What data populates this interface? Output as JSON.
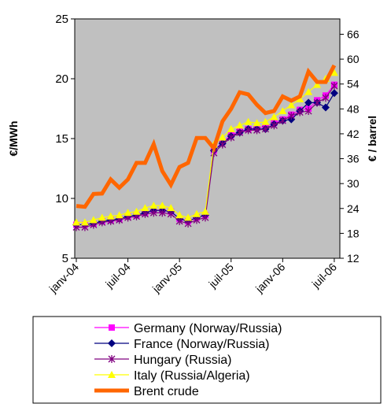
{
  "chart_data": {
    "type": "line",
    "categories": [
      "janv-04",
      null,
      null,
      null,
      null,
      null,
      "juil-04",
      null,
      null,
      null,
      null,
      null,
      "janv-05",
      null,
      null,
      null,
      null,
      null,
      "juil-05",
      null,
      null,
      null,
      null,
      null,
      "janv-06",
      null,
      null,
      null,
      null,
      null,
      "juil-06"
    ],
    "y_label": "€/MWh",
    "y2_label": "€ / barrel",
    "ylim": [
      5,
      25
    ],
    "yticks": [
      5,
      10,
      15,
      20,
      25
    ],
    "y2lim": [
      12,
      69.7
    ],
    "y2ticks": [
      12,
      18,
      24,
      30,
      36,
      42,
      48,
      54,
      60,
      66
    ],
    "series": [
      {
        "name": "Germany (Norway/Russia)",
        "color": "#ff00ff",
        "marker": "square",
        "values": [
          7.8,
          7.8,
          7.9,
          8.1,
          8.2,
          8.3,
          8.5,
          8.6,
          8.8,
          9.0,
          9.0,
          8.9,
          8.3,
          8.1,
          8.4,
          8.6,
          14.0,
          14.7,
          15.3,
          15.6,
          15.8,
          15.9,
          16.0,
          16.3,
          16.6,
          17.0,
          17.4,
          17.5,
          18.2,
          18.6,
          19.5
        ]
      },
      {
        "name": "France (Norway/Russia)",
        "color": "#000080",
        "marker": "diamond",
        "values": [
          7.8,
          7.8,
          7.9,
          8.1,
          8.2,
          8.3,
          8.5,
          8.6,
          8.8,
          9.0,
          9.0,
          8.9,
          8.3,
          8.1,
          8.4,
          8.6,
          14.0,
          14.6,
          15.2,
          15.5,
          15.8,
          15.8,
          15.8,
          16.2,
          16.5,
          16.6,
          17.3,
          18.0,
          18.0,
          17.6,
          18.8
        ]
      },
      {
        "name": "Hungary (Russia)",
        "color": "#800080",
        "marker": "asterisk",
        "values": [
          7.6,
          7.6,
          7.8,
          8.0,
          8.1,
          8.2,
          8.4,
          8.5,
          8.7,
          8.8,
          8.8,
          8.7,
          8.1,
          7.9,
          8.2,
          8.4,
          13.8,
          14.5,
          15.1,
          15.5,
          15.7,
          15.7,
          15.8,
          16.1,
          16.5,
          16.9,
          17.2,
          17.3,
          18.0,
          18.4,
          19.4
        ]
      },
      {
        "name": "Italy (Russia/Algeria)",
        "color": "#ffff00",
        "marker": "triangle",
        "values": [
          8.0,
          8.0,
          8.2,
          8.4,
          8.5,
          8.6,
          8.8,
          8.9,
          9.2,
          9.4,
          9.4,
          9.2,
          8.6,
          8.4,
          8.7,
          8.9,
          14.5,
          15.1,
          15.8,
          16.1,
          16.4,
          16.3,
          16.4,
          16.8,
          17.3,
          17.8,
          18.3,
          18.9,
          19.5,
          20.0,
          20.5
        ]
      },
      {
        "name": "Brent crude",
        "color": "#ff6600",
        "marker": "none",
        "axis": "y2",
        "values": [
          24.6,
          24.4,
          27.5,
          27.6,
          31,
          29,
          31,
          35,
          35,
          39.5,
          33,
          29.7,
          34,
          35,
          41,
          41,
          38.5,
          45,
          48,
          52,
          51.5,
          49,
          47,
          47.5,
          51,
          50,
          51,
          57,
          54.5,
          54.5,
          58.5
        ]
      }
    ]
  }
}
